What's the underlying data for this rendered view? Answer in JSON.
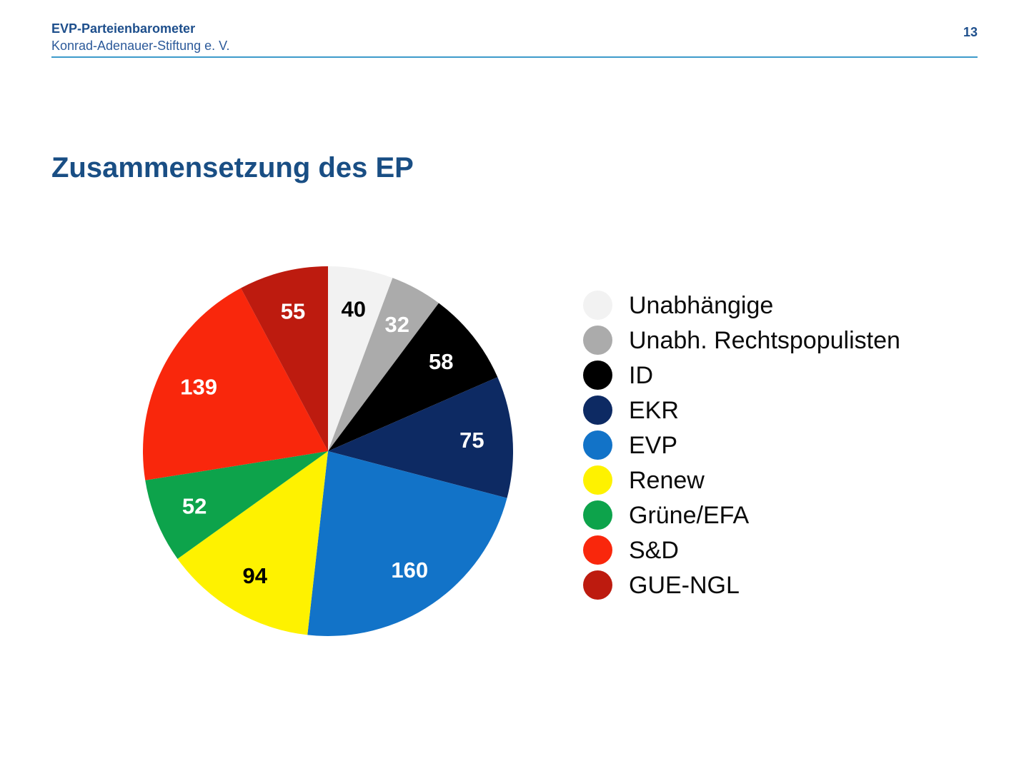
{
  "header": {
    "brand": "EVP-Parteienbarometer",
    "org": "Konrad-Adenauer-Stiftung e. V.",
    "page_number": "13"
  },
  "title": "Zusammensetzung des EP",
  "style": {
    "header_text_color": "#1E4F8C",
    "title_color": "#194E84",
    "divider_color": "#3D9BCB"
  },
  "chart_data": {
    "type": "pie",
    "title": "Zusammensetzung des EP",
    "start_angle_deg": 0,
    "direction": "clockwise",
    "legend_position": "right",
    "data_labels": "values",
    "segments": [
      {
        "label": "Unabhängige",
        "value": 40,
        "color": "#F2F2F2",
        "label_color": "#000000"
      },
      {
        "label": "Unabh. Rechtspopulisten",
        "value": 32,
        "color": "#ABABAB",
        "label_color": "#FFFFFF"
      },
      {
        "label": "ID",
        "value": 58,
        "color": "#000000",
        "label_color": "#FFFFFF"
      },
      {
        "label": "EKR",
        "value": 75,
        "color": "#0D2A63",
        "label_color": "#FFFFFF"
      },
      {
        "label": "EVP",
        "value": 160,
        "color": "#1273C8",
        "label_color": "#FFFFFF"
      },
      {
        "label": "Renew",
        "value": 94,
        "color": "#FEF200",
        "label_color": "#000000"
      },
      {
        "label": "Grüne/EFA",
        "value": 52,
        "color": "#0DA34B",
        "label_color": "#FFFFFF"
      },
      {
        "label": "S&D",
        "value": 139,
        "color": "#F9270C",
        "label_color": "#FFFFFF"
      },
      {
        "label": "GUE-NGL",
        "value": 55,
        "color": "#BD1B0F",
        "label_color": "#FFFFFF"
      }
    ]
  }
}
